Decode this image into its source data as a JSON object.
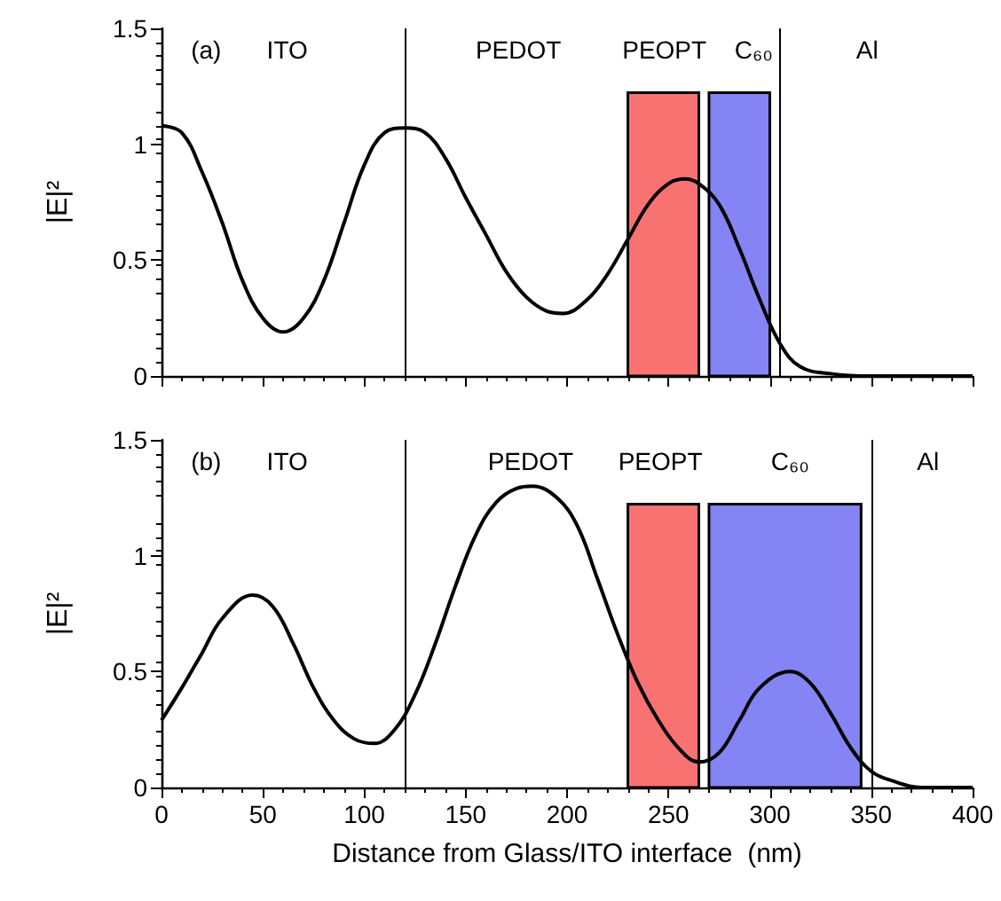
{
  "chart_data": [
    {
      "type": "line",
      "ylabel": "|E|²",
      "tick_labels": "y",
      "xlim": [
        0,
        400
      ],
      "xticks": [
        0,
        50,
        100,
        150,
        200,
        250,
        300,
        350,
        400
      ],
      "ylim": [
        0,
        1.5
      ],
      "yticks": [
        0,
        0.5,
        1,
        1.5
      ],
      "grid": false,
      "marker": "none",
      "series": [
        {
          "color": "#000000",
          "x": [
            0,
            10,
            20,
            30,
            40,
            50,
            60,
            70,
            80,
            90,
            100,
            110,
            120,
            130,
            140,
            150,
            160,
            170,
            180,
            190,
            198,
            210,
            220,
            230,
            240,
            250,
            258,
            265,
            275,
            285,
            295,
            305,
            315,
            330,
            350,
            400
          ],
          "values": [
            1.08,
            1.05,
            0.88,
            0.66,
            0.41,
            0.25,
            0.19,
            0.25,
            0.41,
            0.66,
            0.91,
            1.05,
            1.07,
            1.05,
            0.94,
            0.77,
            0.61,
            0.45,
            0.34,
            0.28,
            0.27,
            0.33,
            0.44,
            0.59,
            0.74,
            0.83,
            0.85,
            0.83,
            0.74,
            0.55,
            0.33,
            0.14,
            0.04,
            0.01,
            0,
            0
          ]
        }
      ],
      "ref_lines": [
        {
          "axis": "x",
          "value": 120,
          "color": "#000000"
        },
        {
          "axis": "x",
          "value": 305,
          "color": "#000000"
        }
      ],
      "bands": [
        {
          "axis": "x",
          "from": 230,
          "to": 265,
          "color": "#f87272"
        },
        {
          "axis": "x",
          "from": 270,
          "to": 300,
          "color": "#8484f4"
        }
      ],
      "annotations": [
        "(a)",
        "ITO",
        "PEDOT",
        "PEOPT",
        "C₆₀",
        "Al"
      ]
    },
    {
      "type": "line",
      "xlabel": "Distance from Glass/ITO interface  (nm)",
      "ylabel": "|E|²",
      "xlim": [
        0,
        400
      ],
      "xticks": [
        0,
        50,
        100,
        150,
        200,
        250,
        300,
        350,
        400
      ],
      "ylim": [
        0,
        1.5
      ],
      "yticks": [
        0,
        0.5,
        1,
        1.5
      ],
      "grid": false,
      "marker": "none",
      "series": [
        {
          "color": "#000000",
          "x": [
            0,
            10,
            20,
            30,
            45,
            55,
            65,
            75,
            85,
            95,
            105,
            115,
            125,
            135,
            145,
            155,
            165,
            175,
            183,
            195,
            205,
            215,
            225,
            235,
            245,
            255,
            265,
            275,
            285,
            295,
            310,
            320,
            330,
            340,
            350,
            360,
            375,
            400
          ],
          "values": [
            0.29,
            0.43,
            0.58,
            0.73,
            0.83,
            0.78,
            0.62,
            0.43,
            0.29,
            0.21,
            0.19,
            0.25,
            0.4,
            0.62,
            0.87,
            1.09,
            1.23,
            1.29,
            1.3,
            1.25,
            1.13,
            0.9,
            0.66,
            0.45,
            0.29,
            0.17,
            0.11,
            0.15,
            0.29,
            0.43,
            0.5,
            0.45,
            0.32,
            0.17,
            0.07,
            0.03,
            0,
            0
          ]
        }
      ],
      "ref_lines": [
        {
          "axis": "x",
          "value": 120,
          "color": "#000000"
        },
        {
          "axis": "x",
          "value": 350,
          "color": "#000000"
        }
      ],
      "bands": [
        {
          "axis": "x",
          "from": 230,
          "to": 265,
          "color": "#f87272"
        },
        {
          "axis": "x",
          "from": 270,
          "to": 345,
          "color": "#8484f4"
        }
      ],
      "annotations": [
        "(b)",
        "ITO",
        "PEDOT",
        "PEOPT",
        "C₆₀",
        "Al"
      ]
    }
  ]
}
